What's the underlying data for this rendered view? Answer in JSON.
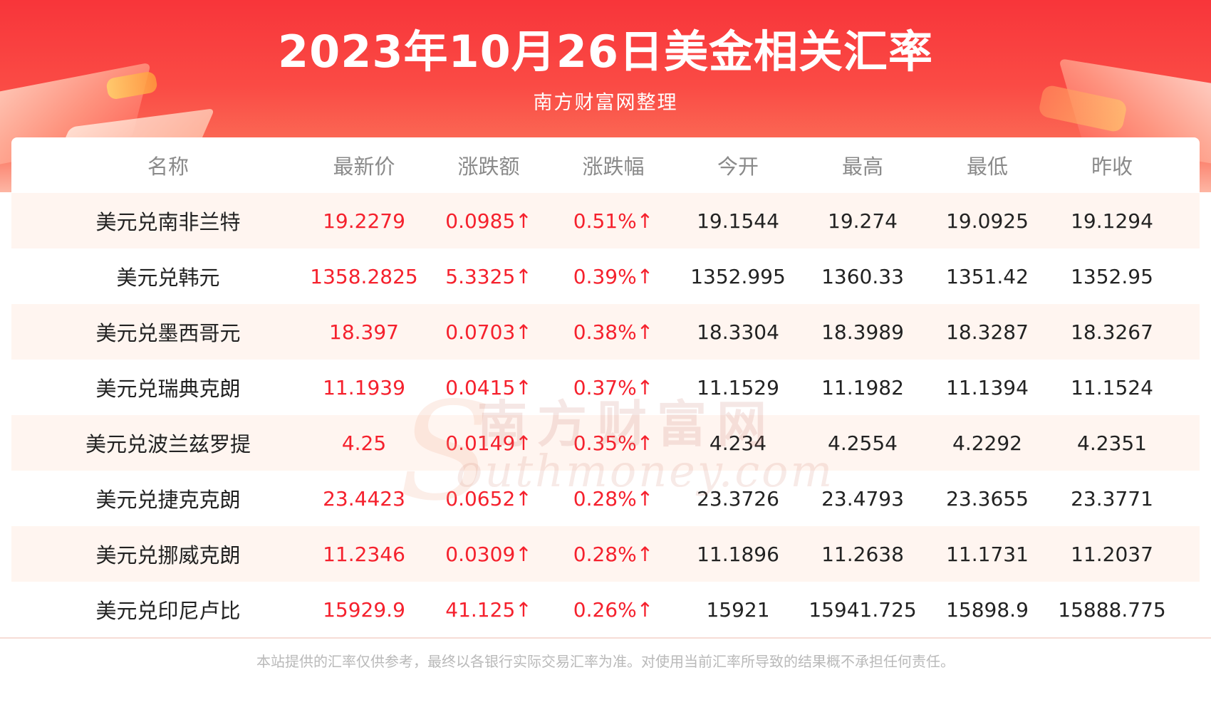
{
  "header": {
    "title": "2023年10月26日美金相关汇率",
    "subtitle": "南方财富网整理"
  },
  "table": {
    "columns": [
      "名称",
      "最新价",
      "涨跌额",
      "涨跌幅",
      "今开",
      "最高",
      "最低",
      "昨收"
    ],
    "rows": [
      {
        "name": "美元兑南非兰特",
        "latest": "19.2279",
        "change": "0.0985↑",
        "change_pct": "0.51%↑",
        "open": "19.1544",
        "high": "19.274",
        "low": "19.0925",
        "prev_close": "19.1294"
      },
      {
        "name": "美元兑韩元",
        "latest": "1358.2825",
        "change": "5.3325↑",
        "change_pct": "0.39%↑",
        "open": "1352.995",
        "high": "1360.33",
        "low": "1351.42",
        "prev_close": "1352.95"
      },
      {
        "name": "美元兑墨西哥元",
        "latest": "18.397",
        "change": "0.0703↑",
        "change_pct": "0.38%↑",
        "open": "18.3304",
        "high": "18.3989",
        "low": "18.3287",
        "prev_close": "18.3267"
      },
      {
        "name": "美元兑瑞典克朗",
        "latest": "11.1939",
        "change": "0.0415↑",
        "change_pct": "0.37%↑",
        "open": "11.1529",
        "high": "11.1982",
        "low": "11.1394",
        "prev_close": "11.1524"
      },
      {
        "name": "美元兑波兰兹罗提",
        "latest": "4.25",
        "change": "0.0149↑",
        "change_pct": "0.35%↑",
        "open": "4.234",
        "high": "4.2554",
        "low": "4.2292",
        "prev_close": "4.2351"
      },
      {
        "name": "美元兑捷克克朗",
        "latest": "23.4423",
        "change": "0.0652↑",
        "change_pct": "0.28%↑",
        "open": "23.3726",
        "high": "23.4793",
        "low": "23.3655",
        "prev_close": "23.3771"
      },
      {
        "name": "美元兑挪威克朗",
        "latest": "11.2346",
        "change": "0.0309↑",
        "change_pct": "0.28%↑",
        "open": "11.1896",
        "high": "11.2638",
        "low": "11.1731",
        "prev_close": "11.2037"
      },
      {
        "name": "美元兑印尼卢比",
        "latest": "15929.9",
        "change": "41.125↑",
        "change_pct": "0.26%↑",
        "open": "15921",
        "high": "15941.725",
        "low": "15898.9",
        "prev_close": "15888.775"
      }
    ]
  },
  "watermark": {
    "cn": "南方财富网",
    "en": "outhmoney.com",
    "letter": "S"
  },
  "footer": {
    "disclaimer": "本站提供的汇率仅供参考，最终以各银行实际交易汇率为准。对使用当前汇率所导致的结果概不承担任何责任。"
  },
  "colors": {
    "brand_red": "#f8353a",
    "up_red": "#f5212d",
    "stripe": "#fff5f0",
    "header_text": "#8a8a8a"
  }
}
